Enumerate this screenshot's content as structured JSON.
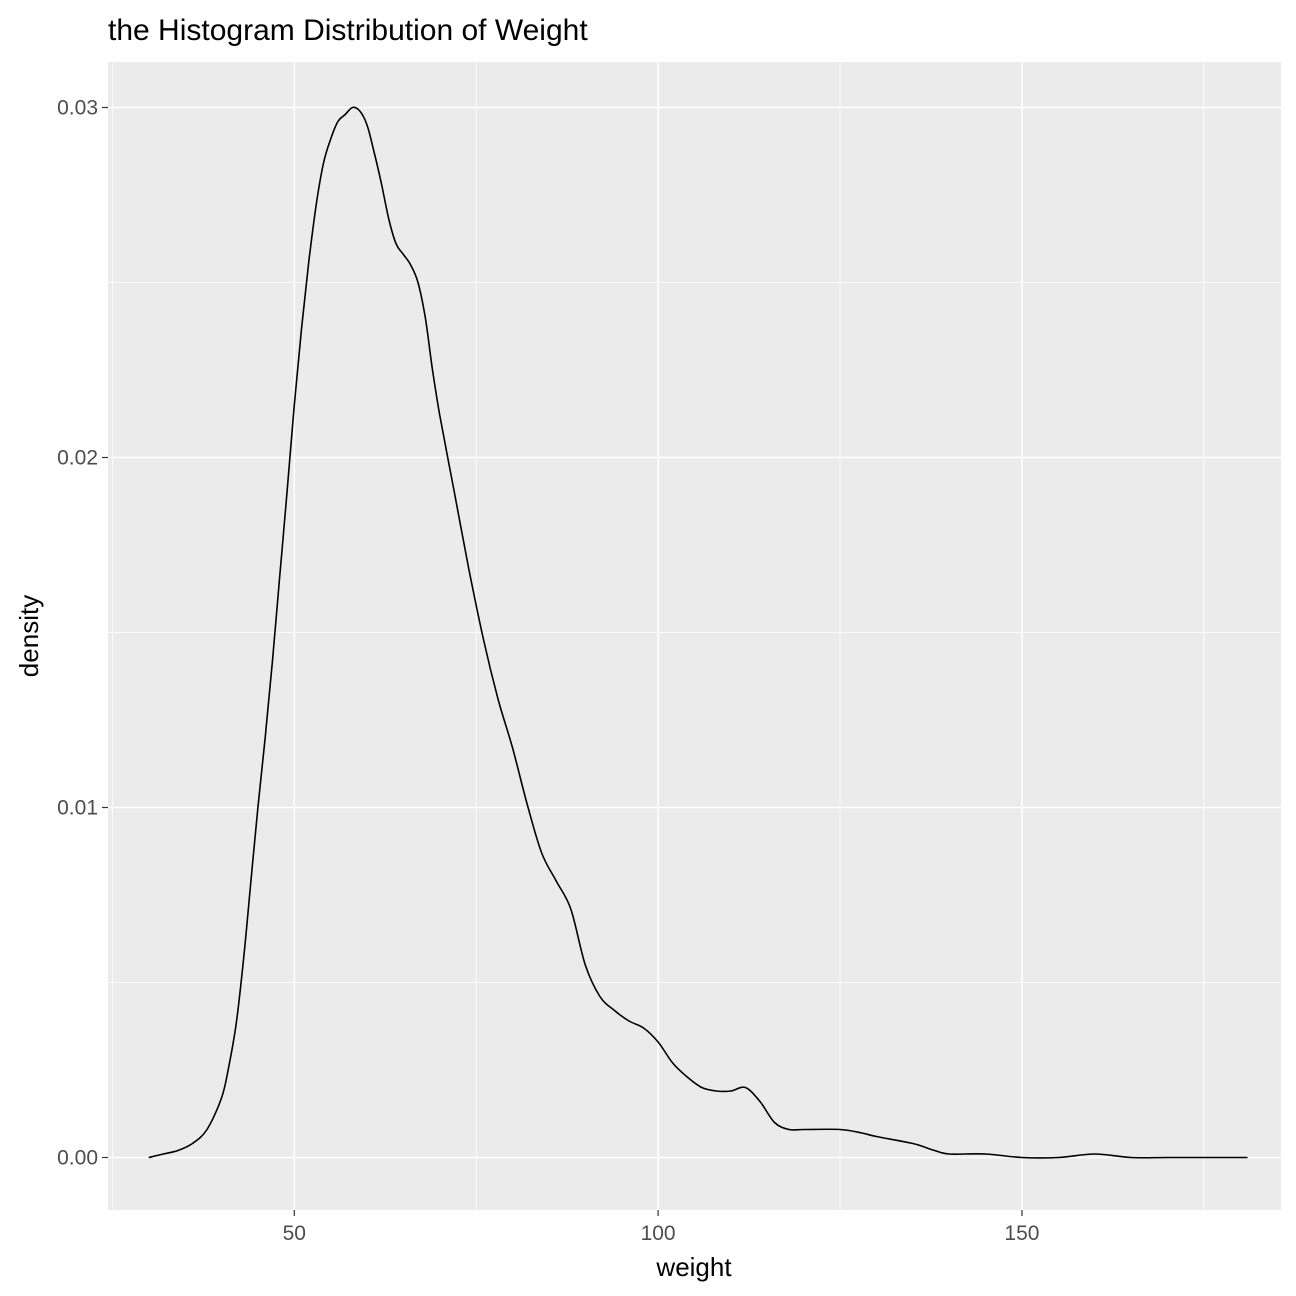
{
  "chart_data": {
    "type": "line",
    "title": "the Histogram Distribution of Weight",
    "xlabel": "weight",
    "ylabel": "density",
    "xlim": [
      24.4,
      185.6
    ],
    "ylim": [
      -0.0015,
      0.0313
    ],
    "x_ticks": [
      50,
      100,
      150
    ],
    "x_tick_labels": [
      "50",
      "100",
      "150"
    ],
    "y_ticks": [
      0.0,
      0.01,
      0.02,
      0.03
    ],
    "y_tick_labels": [
      "0.00",
      "0.01",
      "0.02",
      "0.03"
    ],
    "grid": true,
    "legend": "none",
    "colors": {
      "panel": "#ebebeb",
      "grid": "#ffffff",
      "line": "#000000",
      "tick_text": "#4d4d4d"
    },
    "series": [
      {
        "x": [
          30,
          32,
          34,
          36,
          38,
          40,
          41,
          42,
          43,
          44,
          45,
          46,
          47,
          48,
          49,
          50,
          51,
          52,
          53,
          54,
          55,
          56,
          57,
          58,
          59,
          60,
          61,
          62,
          63,
          64,
          65,
          66,
          67,
          68,
          69,
          70,
          72,
          74,
          76,
          78,
          80,
          82,
          84,
          86,
          88,
          90,
          92,
          94,
          96,
          98,
          100,
          102,
          104,
          106,
          108,
          110,
          112,
          114,
          116,
          118,
          120,
          125,
          128,
          130,
          135,
          138,
          140,
          145,
          150,
          155,
          160,
          165,
          170,
          175,
          181
        ],
        "y": [
          0.0,
          0.0001,
          0.0002,
          0.0004,
          0.0008,
          0.0017,
          0.0026,
          0.0038,
          0.0056,
          0.0078,
          0.01,
          0.012,
          0.0142,
          0.0166,
          0.019,
          0.0215,
          0.0237,
          0.0256,
          0.0272,
          0.0284,
          0.0291,
          0.0296,
          0.0298,
          0.03,
          0.0299,
          0.0295,
          0.0287,
          0.0278,
          0.0268,
          0.0261,
          0.0258,
          0.0255,
          0.025,
          0.024,
          0.0225,
          0.0212,
          0.019,
          0.0168,
          0.0148,
          0.0131,
          0.0117,
          0.0101,
          0.0087,
          0.0079,
          0.0071,
          0.0055,
          0.0046,
          0.0042,
          0.0039,
          0.0037,
          0.0033,
          0.0027,
          0.0023,
          0.002,
          0.0019,
          0.0019,
          0.002,
          0.0016,
          0.001,
          0.0008,
          0.0008,
          0.0008,
          0.0007,
          0.0006,
          0.0004,
          0.0002,
          0.0001,
          0.0001,
          0.0,
          0.0,
          0.0001,
          0.0,
          0.0,
          0.0,
          0.0
        ]
      }
    ]
  }
}
